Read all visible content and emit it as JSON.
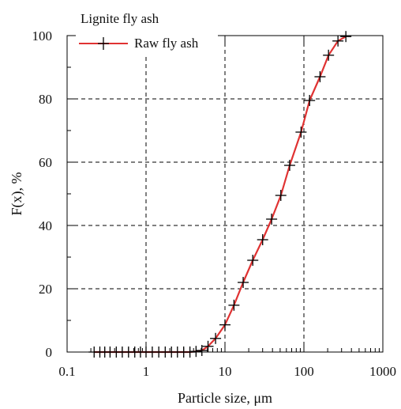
{
  "chart_data": {
    "type": "line",
    "title": "",
    "xlabel": "Particle size, μm",
    "ylabel": "F(x), %",
    "x_scale": "log",
    "xlim": [
      0.1,
      1000
    ],
    "ylim": [
      0,
      100
    ],
    "x_ticks": [
      0.1,
      1,
      10,
      100,
      1000
    ],
    "x_tick_labels": [
      "0.1",
      "1",
      "10",
      "100",
      "1000"
    ],
    "y_ticks": [
      0,
      20,
      40,
      60,
      80,
      100
    ],
    "y_tick_labels": [
      "0",
      "20",
      "40",
      "60",
      "80",
      "100"
    ],
    "grid": true,
    "legend": {
      "title": "Lignite fly ash",
      "placement": "top-left"
    },
    "series": [
      {
        "name": "Raw fly ash",
        "color": "#e03232",
        "marker": "plus",
        "marker_color": "#000000",
        "points": [
          [
            0.22,
            0
          ],
          [
            0.26,
            0
          ],
          [
            0.3,
            0
          ],
          [
            0.35,
            0
          ],
          [
            0.42,
            0
          ],
          [
            0.5,
            0
          ],
          [
            0.6,
            0
          ],
          [
            0.72,
            0
          ],
          [
            0.85,
            0
          ],
          [
            1.0,
            0
          ],
          [
            1.2,
            0
          ],
          [
            1.45,
            0
          ],
          [
            1.75,
            0
          ],
          [
            2.1,
            0
          ],
          [
            2.5,
            0
          ],
          [
            3.0,
            0
          ],
          [
            3.6,
            0
          ],
          [
            4.3,
            0.2
          ],
          [
            5.1,
            0.5
          ],
          [
            6.1,
            1.8
          ],
          [
            7.6,
            4.3
          ],
          [
            10.0,
            8.6
          ],
          [
            13.0,
            14.8
          ],
          [
            17.0,
            22.0
          ],
          [
            22.5,
            29.0
          ],
          [
            30.0,
            35.5
          ],
          [
            39.0,
            42.0
          ],
          [
            51.0,
            49.5
          ],
          [
            66.0,
            59.0
          ],
          [
            92.0,
            69.5
          ],
          [
            118.0,
            79.5
          ],
          [
            160.0,
            87.0
          ],
          [
            205.0,
            93.8
          ],
          [
            270.0,
            98.3
          ],
          [
            340.0,
            99.7
          ]
        ]
      }
    ]
  }
}
